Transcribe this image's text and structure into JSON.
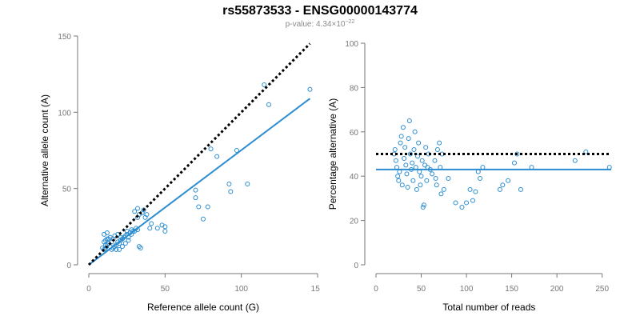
{
  "header": {
    "title": "rs55873533 - ENSG00000143774",
    "pvalue_prefix": "p-value: 4.34×10",
    "pvalue_exponent": "−22"
  },
  "colors": {
    "points": "#2b8cd0",
    "fit_line": "#2b8cd0",
    "reference_line": "#000000",
    "axis": "#777777"
  },
  "chart_data": [
    {
      "type": "scatter",
      "xlabel": "Reference allele count (G)",
      "ylabel": "Alternative allele count (A)",
      "xlim": [
        0,
        150
      ],
      "ylim": [
        0,
        150
      ],
      "xticks": [
        0,
        50,
        100,
        150
      ],
      "yticks": [
        0,
        50,
        100,
        150
      ],
      "grid": false,
      "points": [
        [
          10,
          10
        ],
        [
          11,
          11
        ],
        [
          12,
          13
        ],
        [
          10,
          15
        ],
        [
          11,
          16
        ],
        [
          12,
          17
        ],
        [
          13,
          14
        ],
        [
          14,
          12
        ],
        [
          15,
          10
        ],
        [
          16,
          11
        ],
        [
          17,
          12
        ],
        [
          18,
          13
        ],
        [
          19,
          15
        ],
        [
          20,
          14
        ],
        [
          21,
          16
        ],
        [
          22,
          17
        ],
        [
          23,
          18
        ],
        [
          24,
          19
        ],
        [
          25,
          20
        ],
        [
          26,
          18
        ],
        [
          10,
          20
        ],
        [
          12,
          21
        ],
        [
          14,
          18
        ],
        [
          16,
          17
        ],
        [
          18,
          10
        ],
        [
          20,
          10
        ],
        [
          22,
          12
        ],
        [
          24,
          14
        ],
        [
          26,
          16
        ],
        [
          28,
          20
        ],
        [
          30,
          22
        ],
        [
          32,
          23
        ],
        [
          15,
          15
        ],
        [
          17,
          19
        ],
        [
          19,
          20
        ],
        [
          21,
          18
        ],
        [
          13,
          17
        ],
        [
          11,
          13
        ],
        [
          9,
          11
        ],
        [
          27,
          21
        ],
        [
          32,
          31
        ],
        [
          33,
          33
        ],
        [
          36,
          36
        ],
        [
          35,
          34
        ],
        [
          37,
          31
        ],
        [
          38,
          33
        ],
        [
          40,
          24
        ],
        [
          41,
          27
        ],
        [
          45,
          24
        ],
        [
          48,
          26
        ],
        [
          50,
          22
        ],
        [
          50,
          25
        ],
        [
          33,
          12
        ],
        [
          34,
          11
        ],
        [
          30,
          35
        ],
        [
          32,
          37
        ],
        [
          25,
          22
        ],
        [
          28,
          23
        ],
        [
          31,
          24
        ],
        [
          29,
          22
        ],
        [
          70,
          44
        ],
        [
          70,
          49
        ],
        [
          72,
          38
        ],
        [
          75,
          30
        ],
        [
          78,
          38
        ],
        [
          80,
          76
        ],
        [
          84,
          71
        ],
        [
          92,
          53
        ],
        [
          93,
          48
        ],
        [
          97,
          75
        ],
        [
          104,
          53
        ],
        [
          115,
          118
        ],
        [
          118,
          105
        ],
        [
          145,
          115
        ]
      ],
      "series": [
        {
          "kind": "fit",
          "x": [
            0,
            145
          ],
          "y": [
            0,
            109
          ]
        },
        {
          "kind": "reference",
          "x": [
            0,
            145
          ],
          "y": [
            0,
            145
          ]
        }
      ]
    },
    {
      "type": "scatter",
      "xlabel": "Total number of reads",
      "ylabel": "Percentage alternative (A)",
      "xlim": [
        0,
        260
      ],
      "ylim": [
        0,
        100
      ],
      "xticks": [
        0,
        50,
        100,
        150,
        200,
        250
      ],
      "yticks": [
        0,
        20,
        40,
        60,
        80,
        100
      ],
      "grid": false,
      "points": [
        [
          20,
          50
        ],
        [
          21,
          52
        ],
        [
          22,
          47
        ],
        [
          23,
          44
        ],
        [
          24,
          40
        ],
        [
          25,
          38
        ],
        [
          26,
          42
        ],
        [
          27,
          55
        ],
        [
          28,
          58
        ],
        [
          29,
          36
        ],
        [
          30,
          62
        ],
        [
          31,
          48
        ],
        [
          32,
          53
        ],
        [
          33,
          45
        ],
        [
          34,
          41
        ],
        [
          35,
          35
        ],
        [
          36,
          57
        ],
        [
          37,
          65
        ],
        [
          38,
          50
        ],
        [
          39,
          43
        ],
        [
          40,
          46
        ],
        [
          41,
          38
        ],
        [
          42,
          52
        ],
        [
          43,
          60
        ],
        [
          44,
          44
        ],
        [
          45,
          34
        ],
        [
          46,
          49
        ],
        [
          47,
          55
        ],
        [
          48,
          42
        ],
        [
          49,
          36
        ],
        [
          50,
          40
        ],
        [
          51,
          47
        ],
        [
          52,
          26
        ],
        [
          53,
          27
        ],
        [
          54,
          45
        ],
        [
          55,
          53
        ],
        [
          56,
          38
        ],
        [
          57,
          44
        ],
        [
          58,
          50
        ],
        [
          60,
          43
        ],
        [
          62,
          41
        ],
        [
          65,
          47
        ],
        [
          66,
          39
        ],
        [
          67,
          36
        ],
        [
          68,
          52
        ],
        [
          70,
          55
        ],
        [
          71,
          44
        ],
        [
          72,
          32
        ],
        [
          73,
          50
        ],
        [
          75,
          34
        ],
        [
          80,
          39
        ],
        [
          88,
          28
        ],
        [
          95,
          26
        ],
        [
          100,
          28
        ],
        [
          104,
          34
        ],
        [
          107,
          29
        ],
        [
          110,
          33
        ],
        [
          113,
          42
        ],
        [
          115,
          39
        ],
        [
          118,
          44
        ],
        [
          137,
          34
        ],
        [
          140,
          36
        ],
        [
          146,
          38
        ],
        [
          153,
          46
        ],
        [
          156,
          50
        ],
        [
          160,
          34
        ],
        [
          172,
          44
        ],
        [
          220,
          47
        ],
        [
          232,
          51
        ],
        [
          258,
          44
        ]
      ],
      "series": [
        {
          "kind": "fit",
          "x": [
            0,
            260
          ],
          "y": [
            43,
            43
          ]
        },
        {
          "kind": "reference",
          "x": [
            0,
            260
          ],
          "y": [
            50,
            50
          ]
        }
      ]
    }
  ]
}
